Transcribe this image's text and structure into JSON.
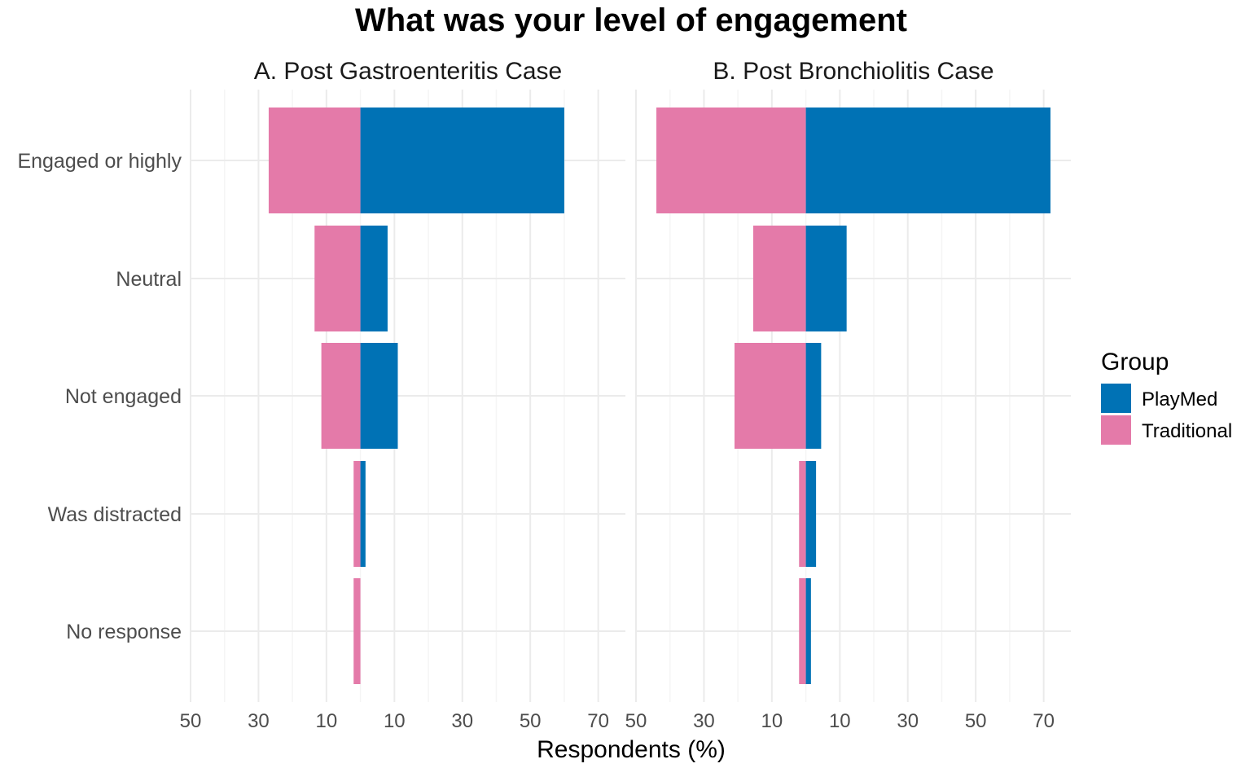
{
  "chart_data": {
    "type": "bar",
    "orientation": "horizontal-diverging",
    "title": "What was your level of engagement",
    "xlabel": "Respondents (%)",
    "ylabel": "",
    "categories": [
      "Engaged or highly",
      "Neutral",
      "Not engaged",
      "Was distracted",
      "No response"
    ],
    "x_ticks": [
      "50",
      "30",
      "10",
      "10",
      "30",
      "50",
      "70"
    ],
    "x_tick_values": [
      -50,
      -30,
      -10,
      10,
      30,
      50,
      70
    ],
    "xlim": [
      -50,
      78
    ],
    "grid": true,
    "legend": {
      "title": "Group",
      "position": "right",
      "entries": [
        {
          "name": "PlayMed",
          "color": "#0072B5"
        },
        {
          "name": "Traditional",
          "color": "#E47AA9"
        }
      ]
    },
    "panels": [
      {
        "title": "A. Post Gastroenteritis Case",
        "series": [
          {
            "name": "PlayMed",
            "values": [
              60,
              8,
              11,
              1.5,
              0
            ]
          },
          {
            "name": "Traditional",
            "values": [
              27,
              13.5,
              11.5,
              2,
              2
            ]
          }
        ]
      },
      {
        "title": "B. Post Bronchiolitis Case",
        "series": [
          {
            "name": "PlayMed",
            "values": [
              72,
              12,
              4.5,
              3,
              1.5
            ]
          },
          {
            "name": "Traditional",
            "values": [
              44,
              15.5,
              21,
              2,
              2
            ]
          }
        ]
      }
    ]
  },
  "colors": {
    "playmed": "#0072B5",
    "traditional": "#E47AA9",
    "grid_major": "#EBEBEB",
    "grid_minor": "#F5F5F5"
  }
}
